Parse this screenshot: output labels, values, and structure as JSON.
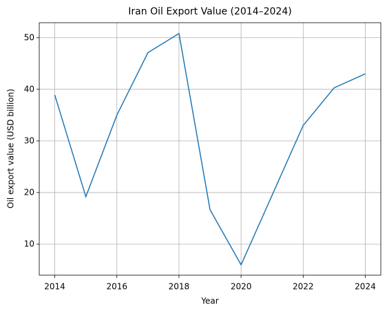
{
  "chart_data": {
    "type": "line",
    "title": "Iran Oil Export Value (2014–2024)",
    "x_label": "Year",
    "y_label": "Oil export value (USD billion)",
    "x": [
      2014,
      2015,
      2016,
      2017,
      2018,
      2019,
      2020,
      2021,
      2022,
      2023,
      2024
    ],
    "series": [
      {
        "name": "Oil export value",
        "color": "#1f77b4",
        "values": [
          38.9,
          19.2,
          35.0,
          47.1,
          50.8,
          16.7,
          6.0,
          19.5,
          33.0,
          40.3,
          43.0
        ]
      }
    ],
    "xlim": [
      2013.5,
      2024.5
    ],
    "xticks": [
      2014,
      2016,
      2018,
      2020,
      2022,
      2024
    ],
    "ylim": [
      4.0,
      52.9
    ],
    "yticks": [
      10,
      20,
      30,
      40,
      50
    ],
    "grid": true
  }
}
